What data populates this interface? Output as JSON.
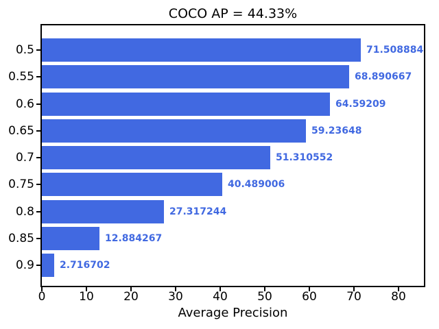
{
  "chart_data": {
    "type": "bar",
    "orientation": "horizontal",
    "title": "COCO AP = 44.33%",
    "xlabel": "Average Precision",
    "ylabel": "",
    "categories": [
      "0.5",
      "0.55",
      "0.6",
      "0.65",
      "0.7",
      "0.75",
      "0.8",
      "0.85",
      "0.9"
    ],
    "values": [
      71.508884,
      68.890667,
      64.59209,
      59.23648,
      51.310552,
      40.489006,
      27.317244,
      12.884267,
      2.716702
    ],
    "value_labels": [
      "71.508884",
      "68.890667",
      "64.59209",
      "59.23648",
      "51.310552",
      "40.489006",
      "27.317244",
      "12.884267",
      "2.716702"
    ],
    "xticks": [
      0,
      10,
      20,
      30,
      40,
      50,
      60,
      70,
      80
    ],
    "xlim": [
      0,
      85.7
    ],
    "grid": false,
    "legend": null,
    "bar_color": "#4169e1",
    "value_label_color": "#4169e1",
    "axis_color": "#000000",
    "background_color": "#ffffff"
  }
}
